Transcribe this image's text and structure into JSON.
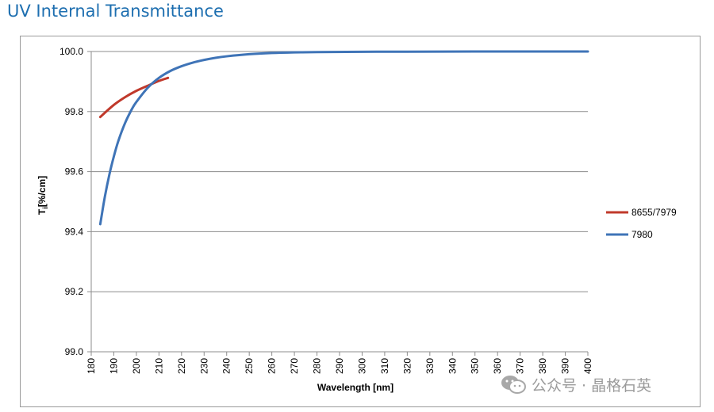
{
  "page": {
    "title": "UV Internal Transmittance",
    "watermark": "公众号 · 晶格石英",
    "watermark_icon": "wechat-bubble-icon"
  },
  "colors": {
    "title": "#1e6fb0",
    "series_8655_7979": "#c0392b",
    "series_7980": "#3f74b7",
    "grid": "#8c8c8c"
  },
  "chart_data": {
    "type": "line",
    "title": "UV Internal Transmittance",
    "xlabel": "Wavelength [nm]",
    "ylabel_main": "T",
    "ylabel_sub": "i",
    "ylabel_rest": "[%/cm]",
    "xlim": [
      180,
      400
    ],
    "ylim": [
      99.0,
      100.0
    ],
    "x_ticks": [
      "180",
      "190",
      "200",
      "210",
      "220",
      "230",
      "240",
      "250",
      "260",
      "270",
      "280",
      "290",
      "300",
      "310",
      "320",
      "330",
      "340",
      "350",
      "360",
      "370",
      "380",
      "390",
      "400"
    ],
    "y_ticks": [
      "99.0",
      "99.2",
      "99.4",
      "99.6",
      "99.8",
      "100.0"
    ],
    "grid": "horizontal",
    "legend_position": "right",
    "series": [
      {
        "name": "8655/7979",
        "color": "#c0392b",
        "x": [
          184,
          190,
          195,
          200,
          205,
          210,
          214
        ],
        "y": [
          99.782,
          99.822,
          99.848,
          99.869,
          99.886,
          99.902,
          99.912
        ]
      },
      {
        "name": "7980",
        "color": "#3f74b7",
        "x": [
          184,
          186,
          188,
          190,
          192,
          195,
          198,
          200,
          205,
          210,
          215,
          220,
          225,
          230,
          235,
          240,
          250,
          260,
          270,
          280,
          300,
          320,
          350,
          400
        ],
        "y": [
          99.425,
          99.515,
          99.589,
          99.65,
          99.702,
          99.762,
          99.808,
          99.832,
          99.879,
          99.912,
          99.935,
          99.951,
          99.963,
          99.972,
          99.979,
          99.984,
          99.991,
          99.995,
          99.997,
          99.998,
          99.999,
          99.9995,
          100.0,
          100.0
        ]
      }
    ]
  }
}
